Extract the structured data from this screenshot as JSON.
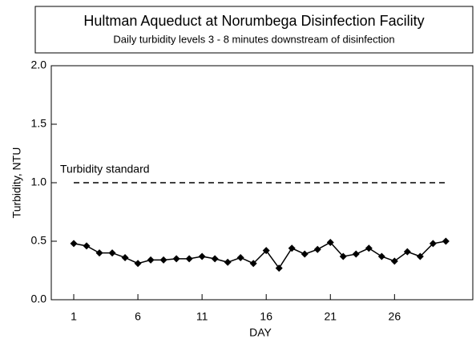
{
  "chart_data": {
    "type": "line",
    "title": "Hultman Aqueduct at Norumbega Disinfection Facility",
    "subtitle": "Daily turbidity levels 3 - 8 minutes downstream of disinfection",
    "xlabel": "DAY",
    "ylabel": "Turbidity, NTU",
    "x": [
      1,
      2,
      3,
      4,
      5,
      6,
      7,
      8,
      9,
      10,
      11,
      12,
      13,
      14,
      15,
      16,
      17,
      18,
      19,
      20,
      21,
      22,
      23,
      24,
      25,
      26,
      27,
      28,
      29,
      30
    ],
    "series": [
      {
        "color": "#000000",
        "values": [
          0.48,
          0.46,
          0.4,
          0.4,
          0.36,
          0.31,
          0.34,
          0.34,
          0.35,
          0.35,
          0.37,
          0.35,
          0.32,
          0.36,
          0.31,
          0.42,
          0.27,
          0.44,
          0.39,
          0.43,
          0.49,
          0.37,
          0.39,
          0.44,
          0.37,
          0.33,
          0.41,
          0.37,
          0.48,
          0.5
        ]
      }
    ],
    "reference_line": {
      "value": 1.0,
      "label": "Turbidity standard"
    },
    "xlim": [
      -0.75,
      32.1
    ],
    "xticks": [
      1,
      6,
      11,
      16,
      21,
      26
    ],
    "ylim": [
      0,
      2
    ],
    "yticks": [
      {
        "value": 0,
        "label": "0.0"
      },
      0.5,
      {
        "value": 1,
        "label": "1.0"
      },
      1.5,
      {
        "value": 2,
        "label": "2.0"
      }
    ]
  }
}
